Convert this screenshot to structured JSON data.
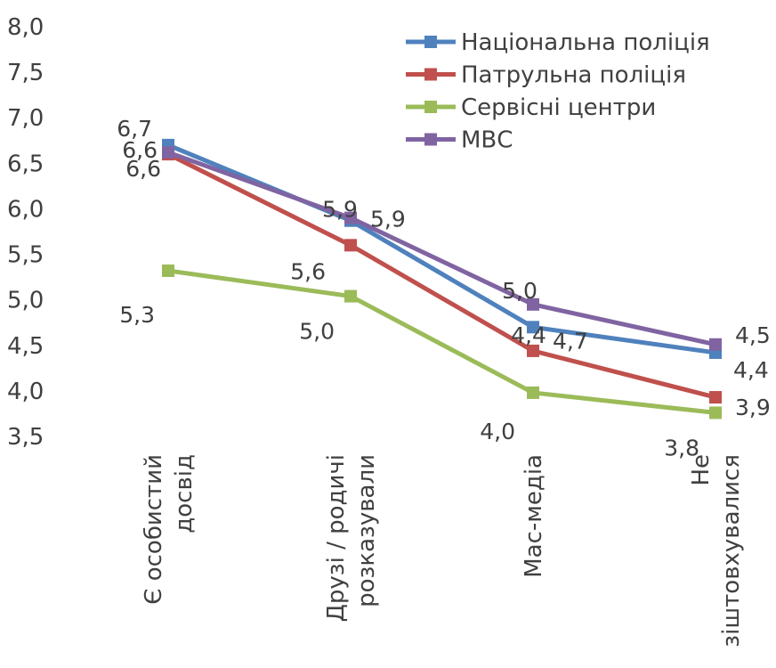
{
  "chart_data": {
    "type": "line",
    "categories": [
      [
        "Є особистий",
        "досвід"
      ],
      [
        "Друзі / родичі",
        "розказували"
      ],
      [
        "Мас-медіа"
      ],
      [
        "Не",
        "зіштовхувалися"
      ]
    ],
    "y_ticks": [
      "8,0",
      "7,5",
      "7,0",
      "6,5",
      "6,0",
      "5,5",
      "5,0",
      "4,5",
      "4,0",
      "3,5"
    ],
    "ylim": [
      3.5,
      8.0
    ],
    "grid": false,
    "legend_position": "top-right",
    "series": [
      {
        "name": "Національна поліція",
        "color": "#4F81BD",
        "values": [
          6.7,
          5.87,
          4.7,
          4.42
        ],
        "labels": [
          "6,7",
          "5,9",
          "4,7",
          "4,4"
        ]
      },
      {
        "name": "Патрульна поліція",
        "color": "#C0504D",
        "values": [
          6.6,
          5.6,
          4.44,
          3.93
        ],
        "labels": [
          "6,6",
          "5,6",
          "4,4",
          "3,9"
        ]
      },
      {
        "name": "Сервісні центри",
        "color": "#9BBB59",
        "values": [
          5.32,
          5.04,
          3.98,
          3.76
        ],
        "labels": [
          "5,3",
          "5,0",
          "4,0",
          "3,8"
        ]
      },
      {
        "name": "МВС",
        "color": "#8064A2",
        "values": [
          6.62,
          5.9,
          4.95,
          4.51
        ],
        "labels": [
          "6,6",
          "5,9",
          "5,0",
          "4,5"
        ]
      }
    ]
  }
}
